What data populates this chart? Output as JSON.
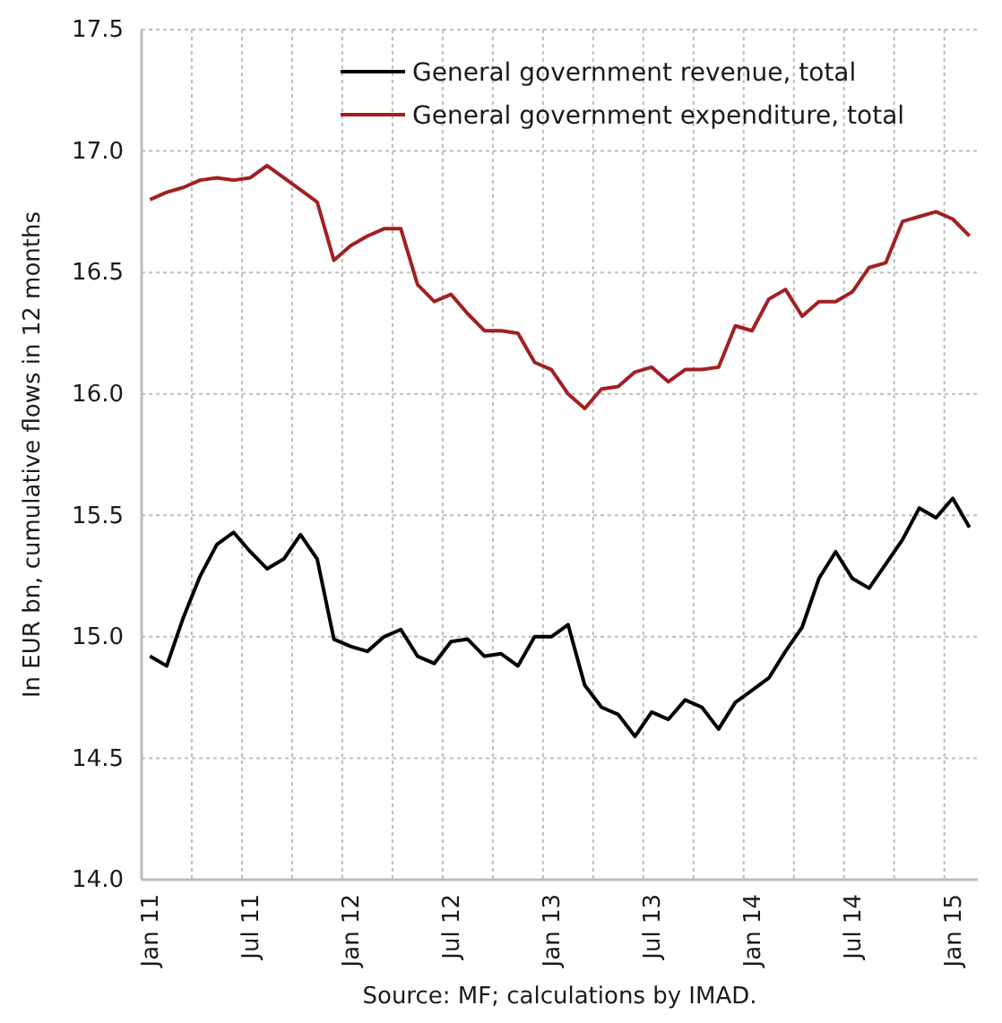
{
  "chart_data": {
    "type": "line",
    "ylabel": "In EUR bn, cumulative flows in 12 months",
    "categories": [
      "Jan 11",
      null,
      null,
      null,
      null,
      null,
      "Jul 11",
      null,
      null,
      null,
      null,
      null,
      "Jan 12",
      null,
      null,
      null,
      null,
      null,
      "Jul 12",
      null,
      null,
      null,
      null,
      null,
      "Jan 13",
      null,
      null,
      null,
      null,
      null,
      "Jul 13",
      null,
      null,
      null,
      null,
      null,
      "Jan 14",
      null,
      null,
      null,
      null,
      null,
      "Jul 14",
      null,
      null,
      null,
      null,
      null,
      "Jan 15",
      null
    ],
    "series": [
      {
        "name": "General government revenue, total",
        "color": "#000000",
        "values": [
          14.92,
          14.88,
          15.08,
          15.25,
          15.38,
          15.43,
          15.35,
          15.28,
          15.32,
          15.42,
          15.32,
          14.99,
          14.96,
          14.94,
          15.0,
          15.03,
          14.92,
          14.89,
          14.98,
          14.99,
          14.92,
          14.93,
          14.88,
          15.0,
          15.0,
          15.05,
          14.8,
          14.71,
          14.68,
          14.59,
          14.69,
          14.66,
          14.74,
          14.71,
          14.62,
          14.73,
          14.78,
          14.83,
          14.94,
          15.04,
          15.24,
          15.35,
          15.24,
          15.2,
          15.3,
          15.4,
          15.53,
          15.49,
          15.57,
          15.45
        ]
      },
      {
        "name": "General government expenditure, total",
        "color": "#a31f22",
        "values": [
          16.8,
          16.83,
          16.85,
          16.88,
          16.89,
          16.88,
          16.89,
          16.94,
          16.89,
          16.84,
          16.79,
          16.55,
          16.61,
          16.65,
          16.68,
          16.68,
          16.45,
          16.38,
          16.41,
          16.33,
          16.26,
          16.26,
          16.25,
          16.13,
          16.1,
          16.0,
          15.94,
          16.02,
          16.03,
          16.09,
          16.11,
          16.05,
          16.1,
          16.1,
          16.11,
          16.28,
          16.26,
          16.39,
          16.43,
          16.32,
          16.38,
          16.38,
          16.42,
          16.52,
          16.54,
          16.71,
          16.73,
          16.75,
          16.72,
          16.65
        ]
      }
    ],
    "ylim": [
      14,
      17.5
    ],
    "yticks": [
      {
        "value": 14,
        "label": "14.0"
      },
      {
        "value": 14.5,
        "label": "14.5"
      },
      {
        "value": 15,
        "label": "15.0"
      },
      {
        "value": 15.5,
        "label": "15.5"
      },
      {
        "value": 16,
        "label": "16.0"
      },
      {
        "value": 16.5,
        "label": "16.5"
      },
      {
        "value": 17,
        "label": "17.0"
      },
      {
        "value": 17.5,
        "label": "17.5"
      }
    ],
    "grid": true,
    "legend": "top",
    "line_style": "solid",
    "marker": "none",
    "annotations": [
      "Source: MF; calculations by IMAD."
    ]
  }
}
